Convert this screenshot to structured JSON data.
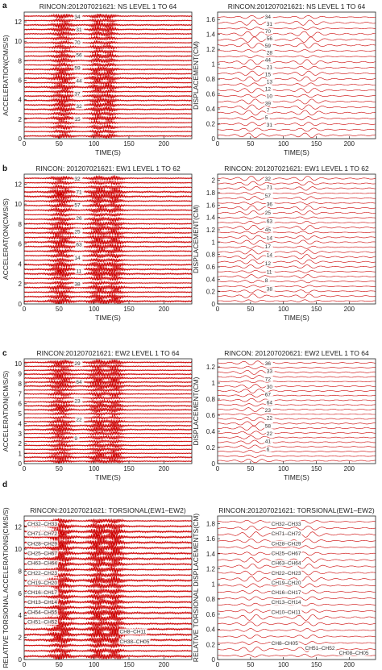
{
  "figure": {
    "panel_labels": [
      "a",
      "b",
      "c",
      "d"
    ]
  },
  "chart_data": [
    {
      "type": "line",
      "title": "RINCON:201207021621: NS LEVEL 1 TO 64",
      "xlabel": "TIME(S)",
      "ylabel": "ACCELERATION(CM/S/S)",
      "xlim": [
        0,
        240
      ],
      "ylim": [
        0,
        13
      ],
      "xticks": [
        0,
        50,
        100,
        150,
        200
      ],
      "yticks": [
        0,
        2,
        4,
        6,
        8,
        10,
        12
      ],
      "color": "#cc0000",
      "trace_count": 28,
      "strong_motion_windows_s": [
        [
          48,
          62
        ],
        [
          100,
          108
        ],
        [
          118,
          126
        ]
      ],
      "channel_labels": [
        "34",
        "31",
        "70",
        "56",
        "59",
        "44",
        "37",
        "32",
        "15"
      ]
    },
    {
      "type": "line",
      "title": "RINCON:201207021621: NS LEVEL 1 TO 64",
      "xlabel": "TIME(S)",
      "ylabel": "DISPLACEMENT(CM)",
      "xlim": [
        0,
        240
      ],
      "ylim": [
        0,
        1.7
      ],
      "xticks": [
        0,
        50,
        100,
        150,
        200
      ],
      "yticks": [
        0,
        0.2,
        0.4,
        0.6,
        0.8,
        1,
        1.2,
        1.4,
        1.6
      ],
      "color": "#cc0000",
      "trace_count": 22,
      "strong_motion_windows_s": [
        [
          40,
          65
        ],
        [
          125,
          150
        ]
      ],
      "channel_labels": [
        "34",
        "31",
        "70",
        "56",
        "59",
        "28",
        "44",
        "21",
        "15",
        "13",
        "12",
        "10",
        "39",
        "7",
        "5",
        "31"
      ]
    },
    {
      "type": "line",
      "title": "RINCON: 201207021621: EW1  LEVEL 1 TO  62",
      "xlabel": "TIME(S)",
      "ylabel": "ACCELERAT(ON(CM/S/S)",
      "xlim": [
        0,
        240
      ],
      "ylim": [
        0,
        13
      ],
      "xticks": [
        0,
        50,
        100,
        150,
        200
      ],
      "yticks": [
        0,
        2,
        4,
        6,
        8,
        10,
        12
      ],
      "color": "#cc0000",
      "trace_count": 28,
      "strong_motion_windows_s": [
        [
          45,
          60
        ],
        [
          100,
          112
        ],
        [
          125,
          135
        ]
      ],
      "channel_labels": [
        "32",
        "71",
        "57",
        "26",
        "25",
        "63",
        "14",
        "11",
        "38"
      ]
    },
    {
      "type": "line",
      "title": "RINCON: 201207021621: EW1  LEVEL 1 TO  62",
      "xlabel": "TIME(S)",
      "ylabel": "DISPLACEMENT(CM)",
      "xlim": [
        0,
        240
      ],
      "ylim": [
        0,
        2.1
      ],
      "xticks": [
        0,
        50,
        100,
        150,
        200
      ],
      "yticks": [
        0,
        0.2,
        0.4,
        0.6,
        0.8,
        1,
        1.2,
        1.4,
        1.6,
        1.8,
        2
      ],
      "color": "#cc0000",
      "trace_count": 26,
      "strong_motion_windows_s": [
        [
          40,
          65
        ],
        [
          125,
          145
        ]
      ],
      "channel_labels": [
        "32",
        "71",
        "57",
        "36",
        "25",
        "63",
        "45",
        "14",
        "17",
        "14",
        "12",
        "11",
        "8",
        "38"
      ]
    },
    {
      "type": "line",
      "title": "RINCON:201207021621: EW2  LEVEL 1 TO 64",
      "xlabel": "TIME(S)",
      "ylabel": "ACCELERATION(CM/S/S)",
      "xlim": [
        0,
        240
      ],
      "ylim": [
        0,
        10.5
      ],
      "xticks": [
        0,
        50,
        100,
        150,
        200
      ],
      "yticks": [
        0,
        1,
        2,
        3,
        4,
        5,
        6,
        7,
        8,
        9,
        10
      ],
      "color": "#cc0000",
      "trace_count": 26,
      "strong_motion_windows_s": [
        [
          45,
          60
        ],
        [
          100,
          112
        ],
        [
          125,
          135
        ]
      ],
      "channel_labels": [
        "29",
        "64",
        "23",
        "22",
        "9"
      ]
    },
    {
      "type": "line",
      "title": "RINCON: 201207020621: EW2 LEVEL 1 TO 64",
      "xlabel": "TIME(S)",
      "ylabel": "DISPLACEMENT(CM)",
      "xlim": [
        0,
        240
      ],
      "ylim": [
        0,
        1.3
      ],
      "xticks": [
        0,
        50,
        100,
        150,
        200
      ],
      "yticks": [
        0,
        0.2,
        0.4,
        0.6,
        0.8,
        1,
        1.2
      ],
      "color": "#cc0000",
      "trace_count": 22,
      "strong_motion_windows_s": [
        [
          40,
          70
        ]
      ],
      "channel_labels": [
        "36",
        "33",
        "72",
        "30",
        "67",
        "64",
        "23",
        "22",
        "58",
        "22",
        "41",
        "6"
      ]
    },
    {
      "type": "line",
      "title": "RINCON:201207021621: TORSIONAL(EW1–EW2)",
      "xlabel": "TIME(S)",
      "ylabel": "RELATIVE TORSIONAL ACCELERATIONS(CM/S/S)",
      "xlim": [
        0,
        240
      ],
      "ylim": [
        0,
        13
      ],
      "xticks": [
        0,
        50,
        100,
        150,
        200
      ],
      "yticks": [
        0,
        2,
        4,
        6,
        8,
        10,
        12
      ],
      "color": "#cc0000",
      "trace_count": 26,
      "strong_motion_windows_s": [
        [
          45,
          60
        ],
        [
          100,
          112
        ],
        [
          125,
          135
        ]
      ],
      "channel_labels": [
        "CH32–CH33",
        "CH71–CH72",
        "CH28–CH29",
        "CH25–CH67",
        "CH63–CH64",
        "CH22–CH23",
        "CH19–CH20",
        "CH16–CH17",
        "CH13–CH14",
        "CH54–CH55",
        "CH51–CH52",
        "CH8–CH11",
        "CH38–CH05"
      ]
    },
    {
      "type": "line",
      "title": "RINCON:201207021621: TORSIONAL(EW1–EW2)",
      "xlabel": "TIME(S)",
      "ylabel": "RELATIVE TORSIONAL DISPLACEMENTS(CM)",
      "xlim": [
        0,
        240
      ],
      "ylim": [
        0,
        1.9
      ],
      "xticks": [
        0,
        50,
        100,
        150,
        200
      ],
      "yticks": [
        0,
        0.2,
        0.4,
        0.6,
        0.8,
        1,
        1.2,
        1.4,
        1.6,
        1.8
      ],
      "color": "#cc0000",
      "trace_count": 22,
      "strong_motion_windows_s": [
        [
          40,
          65
        ],
        [
          125,
          150
        ]
      ],
      "channel_labels": [
        "CH32–CH33",
        "CH71–CH72",
        "CH28–CH29",
        "CH25–CH67",
        "CH63–CH64",
        "CH22–CH23",
        "CH19–CH20",
        "CH16–CH17",
        "CH13–CH14",
        "CH10–CH11",
        "CH8–CH05",
        "CH51–CH52",
        "CH08–CH05"
      ]
    }
  ]
}
